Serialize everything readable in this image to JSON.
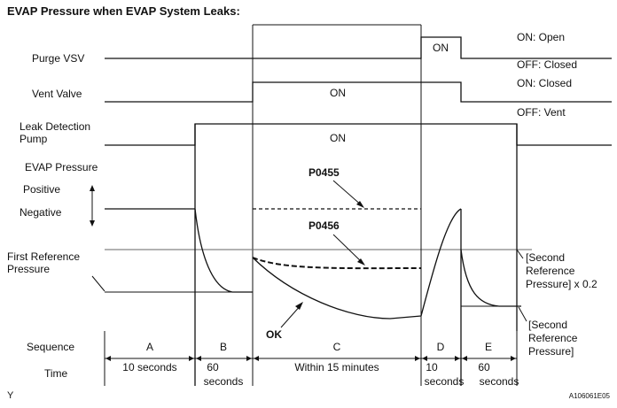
{
  "title": "EVAP Pressure when EVAP System Leaks:",
  "rows": {
    "purge_vsv": "Purge VSV",
    "vent_valve": "Vent Valve",
    "leak_pump_line1": "Leak Detection",
    "leak_pump_line2": "Pump",
    "evap_pressure": "EVAP Pressure",
    "positive": "Positive",
    "negative": "Negative",
    "first_ref_line1": "First Reference",
    "first_ref_line2": "Pressure",
    "sequence": "Sequence",
    "time": "Time"
  },
  "states": {
    "purge_on": "ON: Open",
    "purge_off": "OFF: Closed",
    "vent_on": "ON: Closed",
    "vent_off": "OFF: Vent"
  },
  "on_labels": {
    "purge": "ON",
    "vent": "ON",
    "pump": "ON"
  },
  "codes": {
    "p0455": "P0455",
    "p0456": "P0456",
    "ok": "OK"
  },
  "second_ref_x02": {
    "line1": "[Second",
    "line2": "Reference",
    "line3": "Pressure] x 0.2"
  },
  "second_ref": {
    "line1": "[Second",
    "line2": "Reference",
    "line3": "Pressure]"
  },
  "sequence_labels": [
    "A",
    "B",
    "C",
    "D",
    "E"
  ],
  "time_labels": {
    "a": "10 seconds",
    "b_line1": "60",
    "b_line2": "seconds",
    "c": "Within 15 minutes",
    "d_line1": "10",
    "d_line2": "seconds",
    "e_line1": "60",
    "e_line2": "seconds"
  },
  "footer_left": "Y",
  "figure_id": "A106061E05"
}
